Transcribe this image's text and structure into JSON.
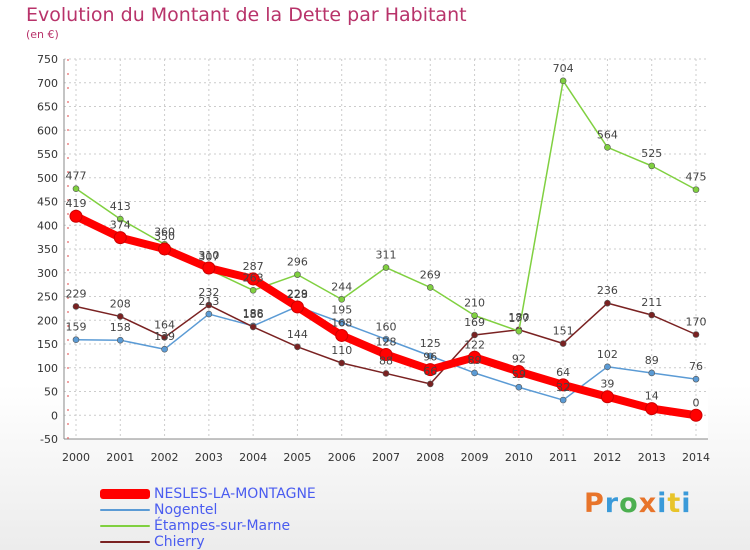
{
  "header": {
    "title": "Evolution du Montant de la Dette par Habitant",
    "subtitle": "(en €)"
  },
  "logo": {
    "letters": [
      "P",
      "r",
      "o",
      "x",
      "i",
      "t",
      "i"
    ],
    "colors": [
      "#e8742a",
      "#3a9ad9",
      "#4caf50",
      "#e8742a",
      "#3a9ad9",
      "#e8c42a",
      "#3a9ad9"
    ]
  },
  "chart_data": {
    "type": "line",
    "title": "Evolution du Montant de la Dette par Habitant",
    "ylabel": "(en €)",
    "xlabel": "",
    "x": [
      "2000",
      "2001",
      "2002",
      "2003",
      "2004",
      "2005",
      "2006",
      "2007",
      "2008",
      "2009",
      "2010",
      "2011",
      "2012",
      "2013",
      "2014"
    ],
    "ylim": [
      -50,
      750
    ],
    "yticks": [
      -50,
      0,
      50,
      100,
      150,
      200,
      250,
      300,
      350,
      400,
      450,
      500,
      550,
      600,
      650,
      700,
      750
    ],
    "grid": true,
    "legend_position": "bottom-left",
    "series": [
      {
        "name": "NESLES-LA-MONTAGNE",
        "color": "#ff0000",
        "values": [
          419,
          374,
          350,
          310,
          287,
          228,
          168,
          128,
          96,
          122,
          92,
          64,
          39,
          14,
          0
        ]
      },
      {
        "name": "Nogentel",
        "color": "#5b9bd5",
        "values": [
          159,
          158,
          139,
          213,
          188,
          229,
          195,
          160,
          125,
          89,
          59,
          32,
          102,
          89,
          76
        ]
      },
      {
        "name": "Étampes-sur-Marne",
        "color": "#80d040",
        "values": [
          477,
          413,
          360,
          307,
          263,
          296,
          244,
          311,
          269,
          210,
          177,
          704,
          564,
          525,
          475
        ]
      },
      {
        "name": "Chierry",
        "color": "#7a2222",
        "values": [
          229,
          208,
          164,
          232,
          186,
          144,
          110,
          88,
          66,
          169,
          180,
          151,
          236,
          211,
          170
        ]
      }
    ],
    "data_labels": [
      [
        419,
        374,
        350,
        310,
        287,
        228,
        168,
        128,
        96,
        122,
        92,
        64,
        39,
        14,
        0
      ],
      [
        159,
        158,
        139,
        213,
        188,
        229,
        195,
        160,
        125,
        89,
        59,
        32,
        102,
        89,
        76
      ],
      [
        477,
        413,
        360,
        307,
        263,
        296,
        244,
        311,
        269,
        210,
        177,
        704,
        564,
        525,
        475
      ],
      [
        229,
        208,
        164,
        232,
        186,
        144,
        110,
        88,
        66,
        169,
        180,
        151,
        236,
        211,
        170
      ]
    ]
  }
}
